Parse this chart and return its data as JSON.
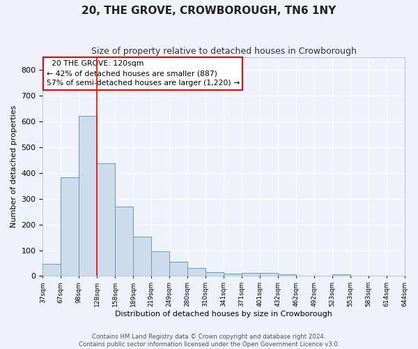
{
  "title": "20, THE GROVE, CROWBOROUGH, TN6 1NY",
  "subtitle": "Size of property relative to detached houses in Crowborough",
  "xlabel": "Distribution of detached houses by size in Crowborough",
  "ylabel": "Number of detached properties",
  "bar_values": [
    47,
    383,
    622,
    437,
    269,
    153,
    95,
    55,
    30,
    16,
    9,
    12,
    11,
    6,
    0,
    0,
    7,
    0,
    0,
    0
  ],
  "bar_labels": [
    "37sqm",
    "67sqm",
    "98sqm",
    "128sqm",
    "158sqm",
    "189sqm",
    "219sqm",
    "249sqm",
    "280sqm",
    "310sqm",
    "341sqm",
    "371sqm",
    "401sqm",
    "432sqm",
    "462sqm",
    "492sqm",
    "523sqm",
    "553sqm",
    "583sqm",
    "614sqm",
    "644sqm"
  ],
  "bar_color": "#ccdcec",
  "bar_edge_color": "#6699bb",
  "ylim": [
    0,
    850
  ],
  "yticks": [
    0,
    100,
    200,
    300,
    400,
    500,
    600,
    700,
    800
  ],
  "property_line_x": 2.5,
  "property_line_color": "red",
  "annotation_box_text": "  20 THE GROVE: 120sqm\n← 42% of detached houses are smaller (887)\n57% of semi-detached houses are larger (1,220) →",
  "footer": "Contains HM Land Registry data © Crown copyright and database right 2024.\nContains public sector information licensed under the Open Government Licence v3.0.",
  "background_color": "#eef2fa",
  "grid_color": "white",
  "title_fontsize": 11,
  "subtitle_fontsize": 9,
  "ylabel_fontsize": 8,
  "xlabel_fontsize": 8
}
